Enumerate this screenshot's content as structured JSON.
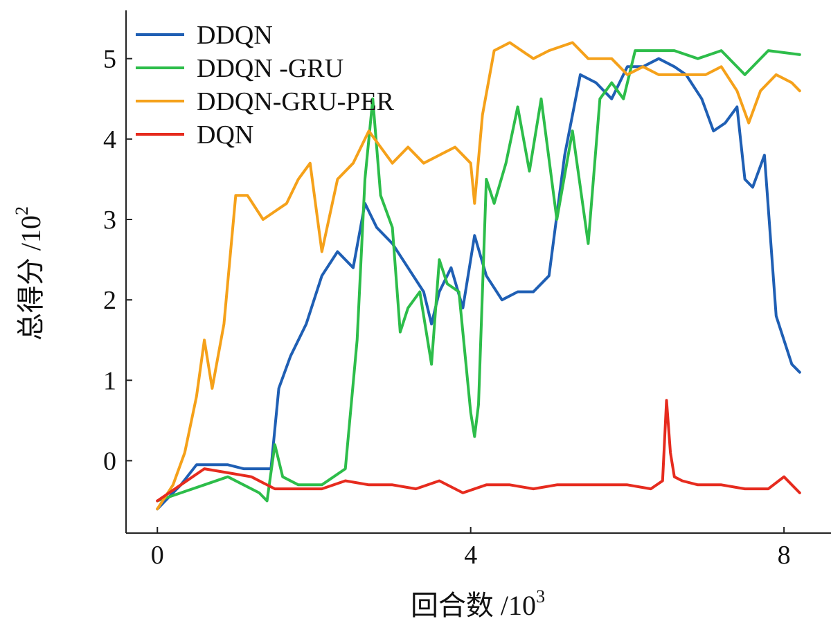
{
  "chart_data": {
    "type": "line",
    "title": "",
    "xlabel": "回合数 /10",
    "xlabel_sup": "3",
    "ylabel": "总得分 /10",
    "ylabel_sup": "2",
    "xlim": [
      -0.4,
      8.6
    ],
    "ylim": [
      -0.9,
      5.6
    ],
    "x_ticks": [
      0,
      4,
      8
    ],
    "x_tick_labels": [
      "0",
      "4",
      "8"
    ],
    "y_ticks": [
      0,
      1,
      2,
      3,
      4,
      5
    ],
    "y_tick_labels": [
      "0",
      "1",
      "2",
      "3",
      "4",
      "5"
    ],
    "grid": false,
    "legend_position": "top-left",
    "series": [
      {
        "name": "DDQN",
        "color": "#1f5fb4",
        "x": [
          0,
          0.3,
          0.5,
          0.7,
          0.9,
          1.1,
          1.3,
          1.45,
          1.55,
          1.7,
          1.9,
          2.1,
          2.3,
          2.5,
          2.65,
          2.8,
          3.0,
          3.2,
          3.4,
          3.5,
          3.6,
          3.75,
          3.9,
          4.05,
          4.2,
          4.4,
          4.6,
          4.8,
          5.0,
          5.2,
          5.4,
          5.6,
          5.8,
          6.0,
          6.2,
          6.4,
          6.6,
          6.75,
          6.95,
          7.1,
          7.25,
          7.4,
          7.5,
          7.6,
          7.75,
          7.9,
          8.1,
          8.2
        ],
        "y": [
          -0.6,
          -0.3,
          -0.05,
          -0.05,
          -0.05,
          -0.1,
          -0.1,
          -0.1,
          0.9,
          1.3,
          1.7,
          2.3,
          2.6,
          2.4,
          3.2,
          2.9,
          2.7,
          2.4,
          2.1,
          1.7,
          2.1,
          2.4,
          1.9,
          2.8,
          2.3,
          2.0,
          2.1,
          2.1,
          2.3,
          3.8,
          4.8,
          4.7,
          4.5,
          4.9,
          4.9,
          5.0,
          4.9,
          4.8,
          4.5,
          4.1,
          4.2,
          4.4,
          3.5,
          3.4,
          3.8,
          1.8,
          1.2,
          1.1
        ]
      },
      {
        "name": "DDQN -GRU",
        "color": "#2dbd4a",
        "x": [
          0,
          0.3,
          0.6,
          0.9,
          1.1,
          1.3,
          1.4,
          1.5,
          1.6,
          1.8,
          2.1,
          2.4,
          2.55,
          2.65,
          2.75,
          2.85,
          3.0,
          3.1,
          3.2,
          3.35,
          3.5,
          3.6,
          3.7,
          3.85,
          4.0,
          4.05,
          4.1,
          4.2,
          4.3,
          4.45,
          4.6,
          4.75,
          4.9,
          5.1,
          5.3,
          5.5,
          5.65,
          5.8,
          5.95,
          6.1,
          6.3,
          6.6,
          6.9,
          7.2,
          7.5,
          7.8,
          8.2
        ],
        "y": [
          -0.5,
          -0.4,
          -0.3,
          -0.2,
          -0.3,
          -0.4,
          -0.5,
          0.2,
          -0.2,
          -0.3,
          -0.3,
          -0.1,
          1.5,
          3.5,
          4.5,
          3.3,
          2.9,
          1.6,
          1.9,
          2.1,
          1.2,
          2.5,
          2.2,
          2.1,
          0.6,
          0.3,
          0.7,
          3.5,
          3.2,
          3.7,
          4.4,
          3.6,
          4.5,
          3.0,
          4.1,
          2.7,
          4.5,
          4.7,
          4.5,
          5.1,
          5.1,
          5.1,
          5.0,
          5.1,
          4.8,
          5.1,
          5.05
        ]
      },
      {
        "name": "DDQN-GRU-PER",
        "color": "#f5a11a",
        "x": [
          0,
          0.2,
          0.35,
          0.5,
          0.6,
          0.7,
          0.85,
          1.0,
          1.15,
          1.35,
          1.5,
          1.65,
          1.8,
          1.95,
          2.1,
          2.3,
          2.5,
          2.7,
          2.85,
          3.0,
          3.2,
          3.4,
          3.6,
          3.8,
          4.0,
          4.05,
          4.15,
          4.3,
          4.5,
          4.8,
          5.0,
          5.3,
          5.5,
          5.8,
          6.0,
          6.2,
          6.4,
          6.6,
          6.8,
          7.0,
          7.2,
          7.4,
          7.55,
          7.7,
          7.9,
          8.1,
          8.2
        ],
        "y": [
          -0.6,
          -0.3,
          0.1,
          0.8,
          1.5,
          0.9,
          1.7,
          3.3,
          3.3,
          3.0,
          3.1,
          3.2,
          3.5,
          3.7,
          2.6,
          3.5,
          3.7,
          4.1,
          3.9,
          3.7,
          3.9,
          3.7,
          3.8,
          3.9,
          3.7,
          3.2,
          4.3,
          5.1,
          5.2,
          5.0,
          5.1,
          5.2,
          5.0,
          5.0,
          4.8,
          4.9,
          4.8,
          4.8,
          4.8,
          4.8,
          4.9,
          4.6,
          4.2,
          4.6,
          4.8,
          4.7,
          4.6
        ]
      },
      {
        "name": "DQN",
        "color": "#e62b1e",
        "x": [
          0,
          0.3,
          0.6,
          0.9,
          1.2,
          1.5,
          1.8,
          2.1,
          2.4,
          2.7,
          3.0,
          3.3,
          3.6,
          3.9,
          4.2,
          4.5,
          4.8,
          5.1,
          5.4,
          5.7,
          6.0,
          6.3,
          6.45,
          6.5,
          6.55,
          6.6,
          6.7,
          6.9,
          7.2,
          7.5,
          7.8,
          8.0,
          8.2
        ],
        "y": [
          -0.5,
          -0.3,
          -0.1,
          -0.15,
          -0.2,
          -0.35,
          -0.35,
          -0.35,
          -0.25,
          -0.3,
          -0.3,
          -0.35,
          -0.25,
          -0.4,
          -0.3,
          -0.3,
          -0.35,
          -0.3,
          -0.3,
          -0.3,
          -0.3,
          -0.35,
          -0.25,
          0.75,
          0.1,
          -0.2,
          -0.25,
          -0.3,
          -0.3,
          -0.35,
          -0.35,
          -0.2,
          -0.4
        ]
      }
    ]
  }
}
